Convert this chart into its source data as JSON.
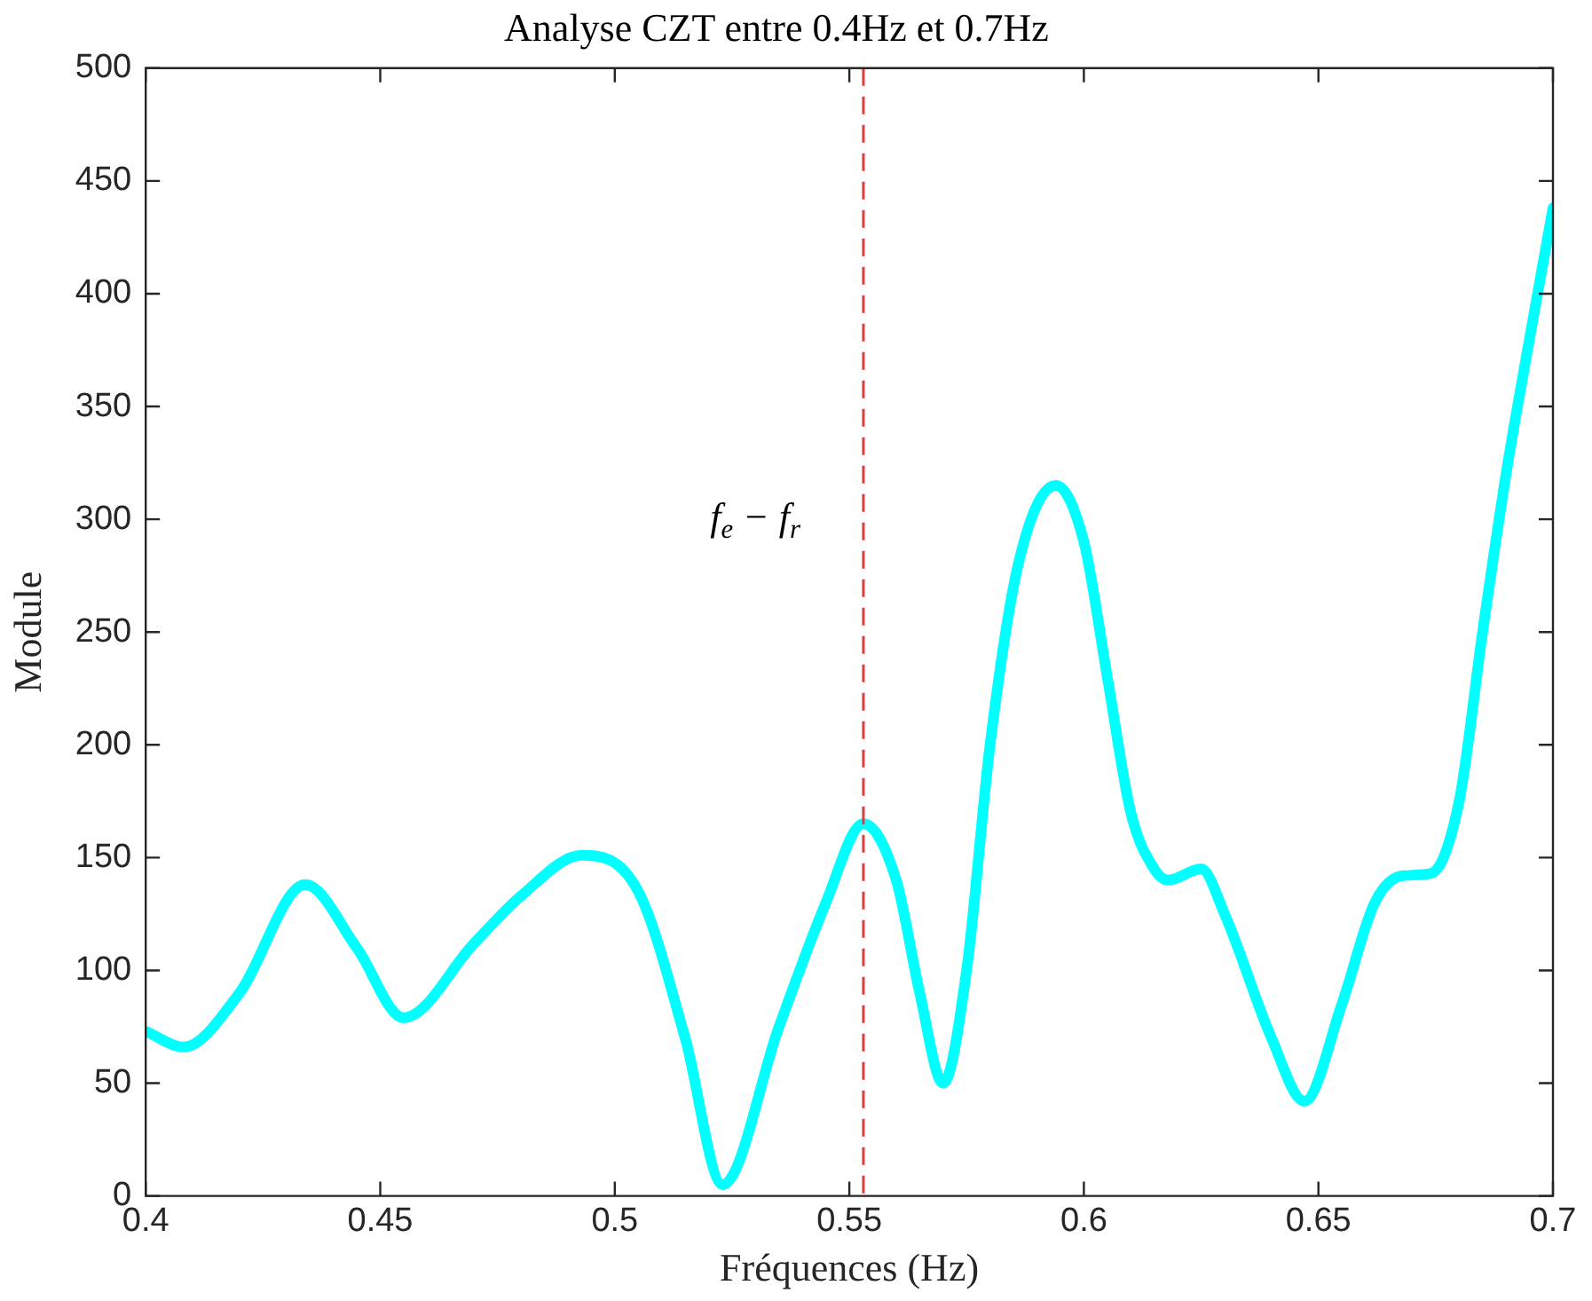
{
  "chart_data": {
    "type": "line",
    "title": "Analyse CZT entre 0.4Hz et 0.7Hz",
    "xlabel": "Fréquences (Hz)",
    "ylabel": "Module",
    "series": [
      {
        "color": "#00ffff",
        "x": [
          0.4,
          0.408,
          0.42,
          0.434,
          0.445,
          0.455,
          0.47,
          0.48,
          0.493,
          0.505,
          0.515,
          0.523,
          0.535,
          0.545,
          0.553,
          0.56,
          0.565,
          0.57,
          0.575,
          0.58,
          0.586,
          0.594,
          0.6,
          0.605,
          0.61,
          0.615,
          0.618,
          0.625,
          0.63,
          0.64,
          0.647,
          0.655,
          0.662,
          0.668,
          0.674,
          0.68,
          0.685,
          0.69,
          0.695,
          0.7
        ],
        "values": [
          73,
          66,
          90,
          138,
          110,
          79,
          112,
          133,
          151,
          135,
          70,
          5,
          75,
          130,
          165,
          140,
          90,
          50,
          100,
          200,
          280,
          315,
          290,
          230,
          170,
          145,
          140,
          145,
          125,
          70,
          42,
          85,
          130,
          142,
          143,
          175,
          250,
          320,
          380,
          438
        ]
      }
    ],
    "ref_lines": [
      {
        "axis": "x",
        "value": 0.553,
        "label": "f$_{e}$ − f$_{r}$",
        "color": "#e03c3c",
        "line_style": "dashed"
      }
    ],
    "xlim": [
      0.4,
      0.7
    ],
    "xticks": [
      0.4,
      0.45,
      0.5,
      0.55,
      0.6,
      0.65,
      0.7
    ],
    "ylim": [
      0,
      500
    ],
    "yticks": [
      0,
      50,
      100,
      150,
      200,
      250,
      300,
      350,
      400,
      450,
      500
    ],
    "grid": false,
    "legend": false,
    "marker": "none",
    "line_style": "solid"
  }
}
